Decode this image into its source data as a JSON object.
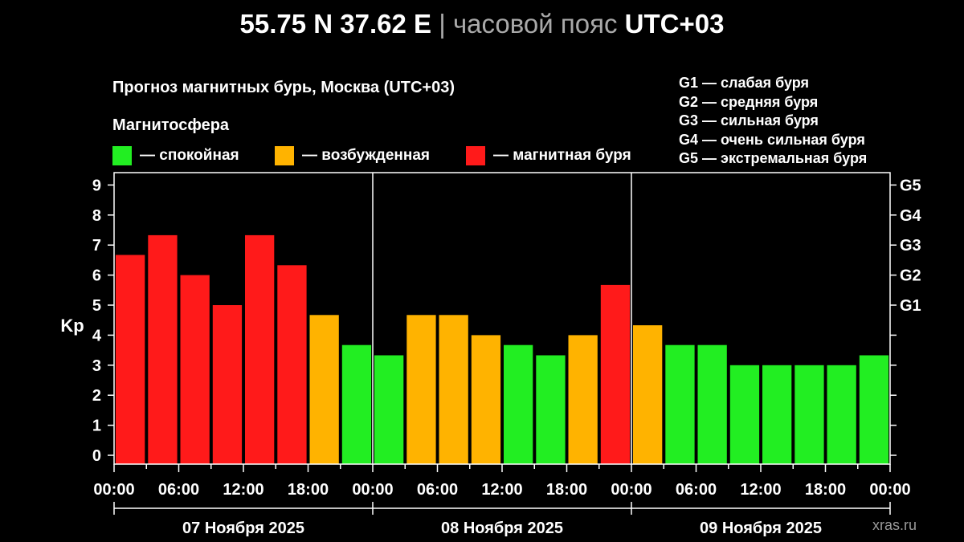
{
  "header": {
    "coords": "55.75 N 37.62 E",
    "separator": "|",
    "tz_label": "часовой пояс",
    "tz_value": "UTC+03"
  },
  "chart_title": "Прогноз магнитных бурь, Москва (UTC+03)",
  "legend_title": "Магнитосфера",
  "legend": [
    {
      "color": "#22ee22",
      "label": "— спокойная"
    },
    {
      "color": "#ffb300",
      "label": "— возбужденная"
    },
    {
      "color": "#ff1a1a",
      "label": "— магнитная буря"
    }
  ],
  "g_levels": [
    "G1 — слабая буря",
    "G2 — средняя буря",
    "G3 — сильная буря",
    "G4 — очень сильная буря",
    "G5 — экстремальная буря"
  ],
  "watermark": "xras.ru",
  "colors": {
    "quiet": "#22ee22",
    "active": "#ffb300",
    "storm": "#ff1a1a"
  },
  "chart_data": {
    "type": "bar",
    "ylabel": "Kp",
    "ylim": [
      0,
      9
    ],
    "yticks": [
      "0",
      "1",
      "2",
      "3",
      "4",
      "5",
      "6",
      "7",
      "8",
      "9"
    ],
    "right_ticks": [
      {
        "label": "G1",
        "value": 5
      },
      {
        "label": "G2",
        "value": 6
      },
      {
        "label": "G3",
        "value": 7
      },
      {
        "label": "G4",
        "value": 8
      },
      {
        "label": "G5",
        "value": 9
      }
    ],
    "x_labels": [
      "00:00",
      "06:00",
      "12:00",
      "18:00",
      "00:00",
      "06:00",
      "12:00",
      "18:00",
      "00:00",
      "06:00",
      "12:00",
      "18:00",
      "00:00"
    ],
    "days": [
      "07 Ноября 2025",
      "08 Ноября 2025",
      "09 Ноября 2025"
    ],
    "values": [
      6.67,
      7.33,
      6.0,
      5.0,
      7.33,
      6.33,
      4.67,
      3.67,
      3.33,
      4.67,
      4.67,
      4.0,
      3.67,
      3.33,
      4.0,
      5.67,
      4.33,
      3.67,
      3.67,
      3.0,
      3.0,
      3.0,
      3.0,
      3.33
    ],
    "levels": [
      "storm",
      "storm",
      "storm",
      "storm",
      "storm",
      "storm",
      "active",
      "quiet",
      "quiet",
      "active",
      "active",
      "active",
      "quiet",
      "quiet",
      "active",
      "storm",
      "active",
      "quiet",
      "quiet",
      "quiet",
      "quiet",
      "quiet",
      "quiet",
      "quiet"
    ],
    "grid": true
  }
}
